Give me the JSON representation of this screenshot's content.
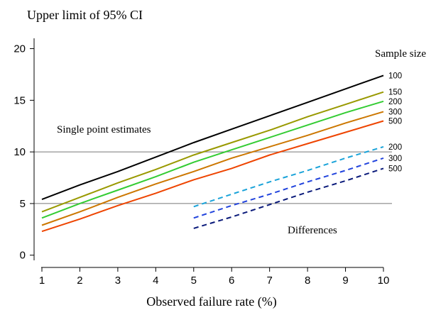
{
  "chart_data": {
    "type": "line",
    "title": "",
    "ylabel": "Upper limit of 95% CI",
    "xlabel": "Observed failure rate (%)",
    "xlim": [
      0.85,
      10.2
    ],
    "ylim": [
      -0.5,
      21
    ],
    "xticks": [
      1,
      2,
      3,
      4,
      5,
      6,
      7,
      8,
      9,
      10
    ],
    "yticks": [
      0,
      5,
      10,
      15,
      20
    ],
    "reference_lines": [
      5,
      10
    ],
    "legend_title": "Sample size",
    "annotations": [
      {
        "text": "Single point estimates"
      },
      {
        "text": "Differences"
      }
    ],
    "series": [
      {
        "name": "100",
        "group": "single",
        "dash": false,
        "color": "#000000",
        "x": [
          1,
          2,
          3,
          4,
          5,
          6,
          7,
          8,
          9,
          10
        ],
        "y": [
          5.4,
          6.8,
          8.1,
          9.5,
          10.9,
          12.2,
          13.5,
          14.8,
          16.1,
          17.4
        ]
      },
      {
        "name": "150",
        "group": "single",
        "dash": false,
        "color": "#999900",
        "x": [
          1,
          2,
          3,
          4,
          5,
          6,
          7,
          8,
          9,
          10
        ],
        "y": [
          4.2,
          5.6,
          7.0,
          8.3,
          9.7,
          10.9,
          12.1,
          13.4,
          14.6,
          15.8
        ]
      },
      {
        "name": "200",
        "group": "single",
        "dash": false,
        "color": "#33cc33",
        "x": [
          1,
          2,
          3,
          4,
          5,
          6,
          7,
          8,
          9,
          10
        ],
        "y": [
          3.6,
          5.0,
          6.3,
          7.6,
          9.0,
          10.2,
          11.4,
          12.6,
          13.8,
          14.9
        ]
      },
      {
        "name": "300",
        "group": "single",
        "dash": false,
        "color": "#cc7700",
        "x": [
          1,
          2,
          3,
          4,
          5,
          6,
          7,
          8,
          9,
          10
        ],
        "y": [
          2.9,
          4.2,
          5.6,
          6.9,
          8.1,
          9.4,
          10.5,
          11.6,
          12.8,
          13.9
        ]
      },
      {
        "name": "500",
        "group": "single",
        "dash": false,
        "color": "#ee4400",
        "x": [
          1,
          2,
          3,
          4,
          5,
          6,
          7,
          8,
          9,
          10
        ],
        "y": [
          2.3,
          3.5,
          4.8,
          6.0,
          7.3,
          8.4,
          9.7,
          10.8,
          11.9,
          13.0
        ]
      },
      {
        "name": "200",
        "group": "differences",
        "dash": true,
        "color": "#1aa3d9",
        "x": [
          5,
          6,
          7,
          8,
          9,
          10
        ],
        "y": [
          4.7,
          5.9,
          7.1,
          8.2,
          9.4,
          10.5
        ]
      },
      {
        "name": "300",
        "group": "differences",
        "dash": true,
        "color": "#2244dd",
        "x": [
          5,
          6,
          7,
          8,
          9,
          10
        ],
        "y": [
          3.6,
          4.8,
          5.9,
          7.1,
          8.2,
          9.4
        ]
      },
      {
        "name": "500",
        "group": "differences",
        "dash": true,
        "color": "#0a1a7a",
        "x": [
          5,
          6,
          7,
          8,
          9,
          10
        ],
        "y": [
          2.6,
          3.7,
          4.9,
          6.1,
          7.2,
          8.4
        ]
      }
    ]
  }
}
